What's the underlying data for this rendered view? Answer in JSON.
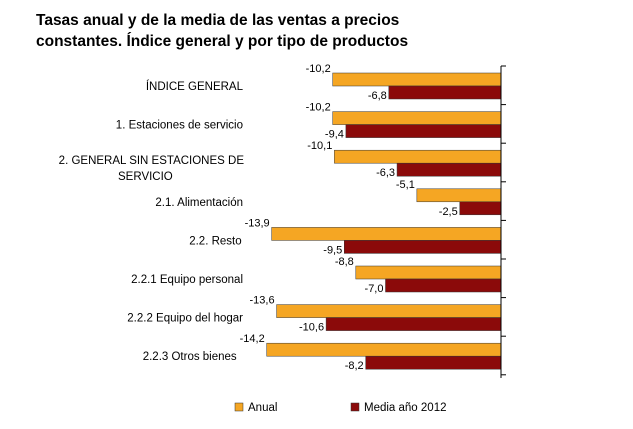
{
  "chart_data": {
    "type": "bar",
    "orientation": "horizontal",
    "title": "Tasas anual y de la media de las ventas a precios constantes. Índice general y por tipo de productos",
    "categories": [
      "ÍNDICE GENERAL",
      "1. Estaciones de servicio",
      "2. GENERAL SIN ESTACIONES DE SERVICIO",
      "2.1. Alimentación",
      "2.2. Resto",
      "2.2.1 Equipo personal",
      "2.2.2 Equipo del hogar",
      "2.2.3 Otros bienes"
    ],
    "series": [
      {
        "name": "Anual",
        "values": [
          -10.2,
          -10.2,
          -10.1,
          -5.1,
          -13.9,
          -8.8,
          -13.6,
          -14.2
        ],
        "value_labels": [
          "-10,2",
          "-10,2",
          "-10,1",
          "-5,1",
          "-13,9",
          "-8,8",
          "-13,6",
          "-14,2"
        ],
        "color": "#f5a623"
      },
      {
        "name": "Media año 2012",
        "values": [
          -6.8,
          -9.4,
          -6.3,
          -2.5,
          -9.5,
          -7.0,
          -10.6,
          -8.2
        ],
        "value_labels": [
          "-6,8",
          "-9,4",
          "-6,3",
          "-2,5",
          "-9,5",
          "-7,0",
          "-10,6",
          "-8,2"
        ],
        "color": "#8b0a0a"
      }
    ],
    "xlim": [
      -16,
      0
    ],
    "grid": false,
    "legend_position": "bottom"
  }
}
